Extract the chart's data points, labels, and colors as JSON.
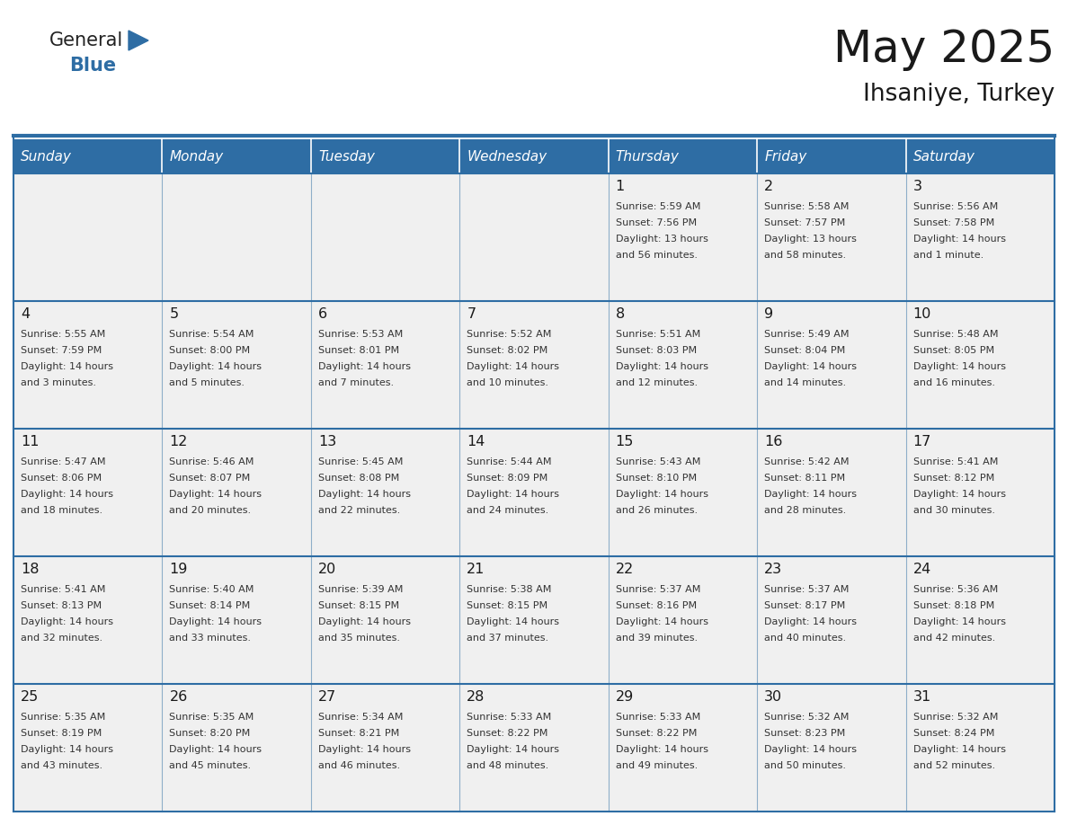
{
  "title": "May 2025",
  "subtitle": "Ihsaniye, Turkey",
  "days_of_week": [
    "Sunday",
    "Monday",
    "Tuesday",
    "Wednesday",
    "Thursday",
    "Friday",
    "Saturday"
  ],
  "header_bg": "#2E6DA4",
  "header_text": "#FFFFFF",
  "cell_bg": "#F0F0F0",
  "cell_border": "#2E6DA4",
  "day_num_color": "#1A1A1A",
  "text_color": "#333333",
  "title_color": "#1A1A1A",
  "logo_general_color": "#222222",
  "logo_blue_color": "#2E6DA4",
  "calendar_data": [
    [
      {
        "day": null,
        "text": ""
      },
      {
        "day": null,
        "text": ""
      },
      {
        "day": null,
        "text": ""
      },
      {
        "day": null,
        "text": ""
      },
      {
        "day": 1,
        "text": "Sunrise: 5:59 AM\nSunset: 7:56 PM\nDaylight: 13 hours\nand 56 minutes."
      },
      {
        "day": 2,
        "text": "Sunrise: 5:58 AM\nSunset: 7:57 PM\nDaylight: 13 hours\nand 58 minutes."
      },
      {
        "day": 3,
        "text": "Sunrise: 5:56 AM\nSunset: 7:58 PM\nDaylight: 14 hours\nand 1 minute."
      }
    ],
    [
      {
        "day": 4,
        "text": "Sunrise: 5:55 AM\nSunset: 7:59 PM\nDaylight: 14 hours\nand 3 minutes."
      },
      {
        "day": 5,
        "text": "Sunrise: 5:54 AM\nSunset: 8:00 PM\nDaylight: 14 hours\nand 5 minutes."
      },
      {
        "day": 6,
        "text": "Sunrise: 5:53 AM\nSunset: 8:01 PM\nDaylight: 14 hours\nand 7 minutes."
      },
      {
        "day": 7,
        "text": "Sunrise: 5:52 AM\nSunset: 8:02 PM\nDaylight: 14 hours\nand 10 minutes."
      },
      {
        "day": 8,
        "text": "Sunrise: 5:51 AM\nSunset: 8:03 PM\nDaylight: 14 hours\nand 12 minutes."
      },
      {
        "day": 9,
        "text": "Sunrise: 5:49 AM\nSunset: 8:04 PM\nDaylight: 14 hours\nand 14 minutes."
      },
      {
        "day": 10,
        "text": "Sunrise: 5:48 AM\nSunset: 8:05 PM\nDaylight: 14 hours\nand 16 minutes."
      }
    ],
    [
      {
        "day": 11,
        "text": "Sunrise: 5:47 AM\nSunset: 8:06 PM\nDaylight: 14 hours\nand 18 minutes."
      },
      {
        "day": 12,
        "text": "Sunrise: 5:46 AM\nSunset: 8:07 PM\nDaylight: 14 hours\nand 20 minutes."
      },
      {
        "day": 13,
        "text": "Sunrise: 5:45 AM\nSunset: 8:08 PM\nDaylight: 14 hours\nand 22 minutes."
      },
      {
        "day": 14,
        "text": "Sunrise: 5:44 AM\nSunset: 8:09 PM\nDaylight: 14 hours\nand 24 minutes."
      },
      {
        "day": 15,
        "text": "Sunrise: 5:43 AM\nSunset: 8:10 PM\nDaylight: 14 hours\nand 26 minutes."
      },
      {
        "day": 16,
        "text": "Sunrise: 5:42 AM\nSunset: 8:11 PM\nDaylight: 14 hours\nand 28 minutes."
      },
      {
        "day": 17,
        "text": "Sunrise: 5:41 AM\nSunset: 8:12 PM\nDaylight: 14 hours\nand 30 minutes."
      }
    ],
    [
      {
        "day": 18,
        "text": "Sunrise: 5:41 AM\nSunset: 8:13 PM\nDaylight: 14 hours\nand 32 minutes."
      },
      {
        "day": 19,
        "text": "Sunrise: 5:40 AM\nSunset: 8:14 PM\nDaylight: 14 hours\nand 33 minutes."
      },
      {
        "day": 20,
        "text": "Sunrise: 5:39 AM\nSunset: 8:15 PM\nDaylight: 14 hours\nand 35 minutes."
      },
      {
        "day": 21,
        "text": "Sunrise: 5:38 AM\nSunset: 8:15 PM\nDaylight: 14 hours\nand 37 minutes."
      },
      {
        "day": 22,
        "text": "Sunrise: 5:37 AM\nSunset: 8:16 PM\nDaylight: 14 hours\nand 39 minutes."
      },
      {
        "day": 23,
        "text": "Sunrise: 5:37 AM\nSunset: 8:17 PM\nDaylight: 14 hours\nand 40 minutes."
      },
      {
        "day": 24,
        "text": "Sunrise: 5:36 AM\nSunset: 8:18 PM\nDaylight: 14 hours\nand 42 minutes."
      }
    ],
    [
      {
        "day": 25,
        "text": "Sunrise: 5:35 AM\nSunset: 8:19 PM\nDaylight: 14 hours\nand 43 minutes."
      },
      {
        "day": 26,
        "text": "Sunrise: 5:35 AM\nSunset: 8:20 PM\nDaylight: 14 hours\nand 45 minutes."
      },
      {
        "day": 27,
        "text": "Sunrise: 5:34 AM\nSunset: 8:21 PM\nDaylight: 14 hours\nand 46 minutes."
      },
      {
        "day": 28,
        "text": "Sunrise: 5:33 AM\nSunset: 8:22 PM\nDaylight: 14 hours\nand 48 minutes."
      },
      {
        "day": 29,
        "text": "Sunrise: 5:33 AM\nSunset: 8:22 PM\nDaylight: 14 hours\nand 49 minutes."
      },
      {
        "day": 30,
        "text": "Sunrise: 5:32 AM\nSunset: 8:23 PM\nDaylight: 14 hours\nand 50 minutes."
      },
      {
        "day": 31,
        "text": "Sunrise: 5:32 AM\nSunset: 8:24 PM\nDaylight: 14 hours\nand 52 minutes."
      }
    ]
  ]
}
